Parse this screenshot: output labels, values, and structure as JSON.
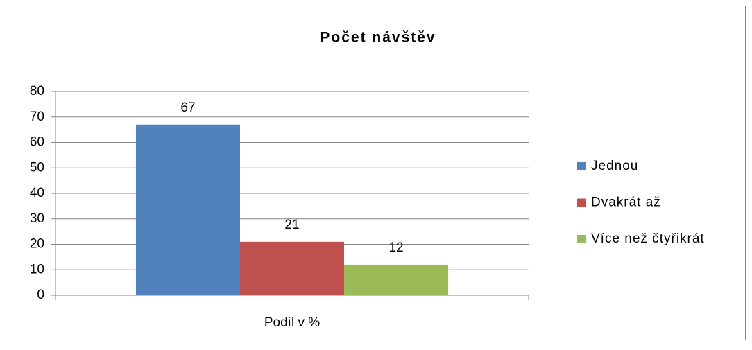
{
  "chart_data": {
    "type": "bar",
    "title": "Počet návštěv",
    "categories": [
      "Podíl v %"
    ],
    "series": [
      {
        "name": "Jednou",
        "color": "#4f81bd",
        "values": [
          67
        ]
      },
      {
        "name": "Dvakrát až",
        "color": "#c0504d",
        "values": [
          21
        ]
      },
      {
        "name": "Více než čtyřikrát",
        "color": "#9bbb59",
        "values": [
          12
        ]
      }
    ],
    "ylim": [
      0,
      80
    ],
    "yticks": [
      0,
      10,
      20,
      30,
      40,
      50,
      60,
      70,
      80
    ],
    "grid": true,
    "legend": "right"
  }
}
